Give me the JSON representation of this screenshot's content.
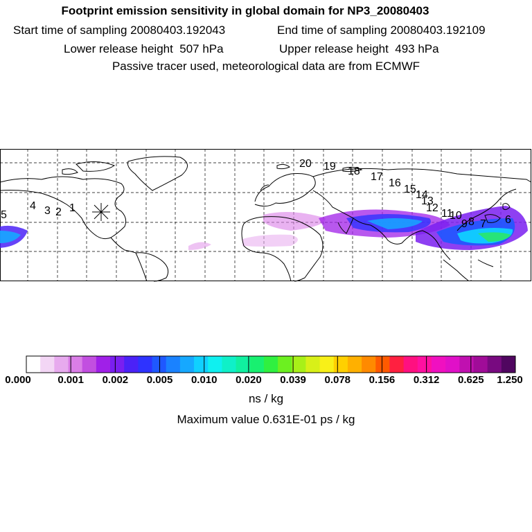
{
  "header": {
    "title": "Footprint emission sensitivity in global domain for NP3_20080403",
    "start_time": "Start time of sampling 20080403.192043",
    "end_time": "End time of sampling 20080403.192109",
    "lower_height": "Lower release height  507 hPa",
    "upper_height": "Upper release height  493 hPa",
    "tracer_note": "Passive tracer used, meteorological data are from ECMWF"
  },
  "map": {
    "release_marker": "*",
    "trajectory_labels": [
      "1",
      "2",
      "3",
      "4",
      "5",
      "6",
      "7",
      "8",
      "9",
      "10",
      "11",
      "12",
      "13",
      "14",
      "15",
      "16",
      "17",
      "18",
      "19",
      "20"
    ]
  },
  "colorbar": {
    "tick_labels": [
      "0.000",
      "0.001",
      "0.002",
      "0.005",
      "0.010",
      "0.020",
      "0.039",
      "0.078",
      "0.156",
      "0.312",
      "0.625",
      "1.250"
    ],
    "colors": [
      "#ffffff",
      "#f3d6f5",
      "#e7aaee",
      "#da7ee7",
      "#c24fe0",
      "#a020e8",
      "#7a1ff0",
      "#4b22f7",
      "#2e33ff",
      "#1f58ff",
      "#1a82ff",
      "#16a8ff",
      "#10d0ff",
      "#0ff0f0",
      "#0ff0c8",
      "#10f0a0",
      "#18f070",
      "#30f040",
      "#6cf020",
      "#a8f018",
      "#d8f018",
      "#f8f018",
      "#ffd000",
      "#ffb000",
      "#ff8a00",
      "#ff5a00",
      "#ff2040",
      "#ff1080",
      "#ff10a0",
      "#f010c0",
      "#e010c8",
      "#c010b0",
      "#a00c98",
      "#780a80",
      "#500660"
    ],
    "unit": "ns / kg"
  },
  "footer": {
    "max_value": "Maximum value  0.631E-01 ps / kg"
  }
}
